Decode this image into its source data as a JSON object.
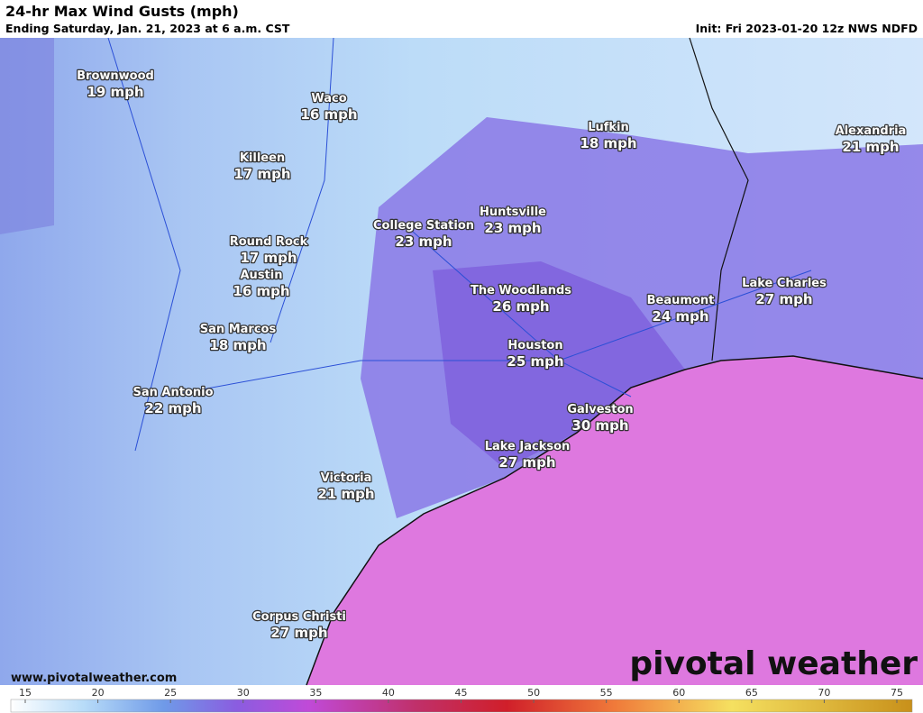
{
  "header": {
    "title": "24-hr Max Wind Gusts (mph)",
    "subtitle": "Ending Saturday, Jan. 21, 2023 at 6 a.m. CST",
    "init": "Init: Fri 2023-01-20 12z NWS NDFD"
  },
  "cities": [
    {
      "name": "Brownwood",
      "value": "19 mph"
    },
    {
      "name": "Waco",
      "value": "16 mph"
    },
    {
      "name": "Killeen",
      "value": "17 mph"
    },
    {
      "name": "Lufkin",
      "value": "18 mph"
    },
    {
      "name": "Alexandria",
      "value": "21 mph"
    },
    {
      "name": "Huntsville",
      "value": "23 mph"
    },
    {
      "name": "College Station",
      "value": "23 mph"
    },
    {
      "name": "Round Rock",
      "value": "17 mph"
    },
    {
      "name": "Austin",
      "value": "16 mph"
    },
    {
      "name": "The Woodlands",
      "value": "26 mph"
    },
    {
      "name": "Beaumont",
      "value": "24 mph"
    },
    {
      "name": "Lake Charles",
      "value": "27 mph"
    },
    {
      "name": "San Marcos",
      "value": "18 mph"
    },
    {
      "name": "Houston",
      "value": "25 mph"
    },
    {
      "name": "San Antonio",
      "value": "22 mph"
    },
    {
      "name": "Galveston",
      "value": "30 mph"
    },
    {
      "name": "Lake Jackson",
      "value": "27 mph"
    },
    {
      "name": "Victoria",
      "value": "21 mph"
    },
    {
      "name": "Corpus Christi",
      "value": "27 mph"
    }
  ],
  "footer": {
    "website": "www.pivotalweather.com",
    "brand": "pivotal weather"
  },
  "colorbar": {
    "ticks": [
      15,
      20,
      25,
      30,
      35,
      40,
      45,
      50,
      55,
      60,
      65,
      70,
      75
    ]
  }
}
